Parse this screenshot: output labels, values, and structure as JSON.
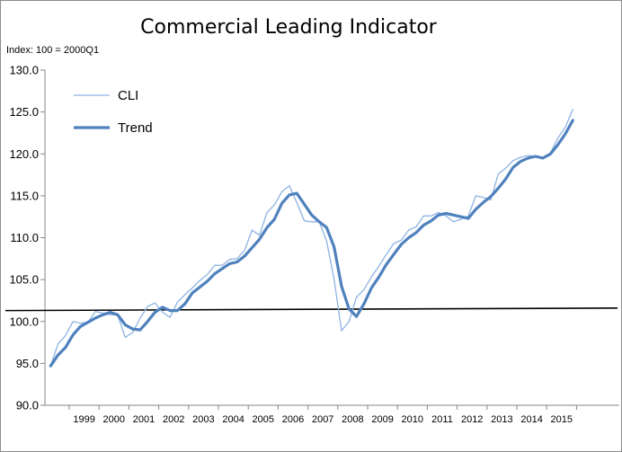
{
  "chart_data": {
    "type": "line",
    "title": "Commercial Leading Indicator",
    "subtitle": "Index: 100 = 2000Q1",
    "xlabel": "",
    "ylabel": "",
    "ylim": [
      90,
      130
    ],
    "yticks": [
      "90.0",
      "95.0",
      "100.0",
      "105.0",
      "110.0",
      "115.0",
      "120.0",
      "125.0",
      "130.0"
    ],
    "xticks": [
      "1999",
      "2000",
      "2001",
      "2002",
      "2003",
      "2004",
      "2005",
      "2006",
      "2007",
      "2008",
      "2009",
      "2010",
      "2011",
      "2012",
      "2013",
      "2014",
      "2015"
    ],
    "grid": false,
    "legend": "top-left",
    "x_start": "1998Q2",
    "frequency": "quarterly",
    "series": [
      {
        "name": "CLI",
        "color": "#8db3e2",
        "values": [
          94.7,
          97.3,
          98.3,
          100.0,
          99.8,
          99.9,
          101.2,
          101.0,
          100.8,
          100.8,
          98.1,
          98.7,
          100.4,
          101.8,
          102.2,
          101.1,
          100.5,
          102.3,
          103.2,
          104.0,
          104.9,
          105.6,
          106.7,
          106.7,
          107.4,
          107.5,
          108.5,
          110.9,
          110.3,
          113.0,
          113.9,
          115.5,
          116.2,
          114.2,
          112.0,
          111.9,
          111.9,
          109.6,
          105.0,
          98.9,
          100.0,
          102.9,
          103.8,
          105.3,
          106.6,
          108.0,
          109.3,
          109.7,
          110.9,
          111.3,
          112.6,
          112.6,
          113.0,
          112.6,
          111.9,
          112.2,
          112.6,
          115.0,
          114.8,
          114.5,
          117.6,
          118.3,
          119.2,
          119.6,
          119.8,
          119.7,
          119.5,
          120.1,
          121.9,
          123.2,
          125.3
        ]
      },
      {
        "name": "Trend",
        "color": "#4f81bd",
        "values": [
          94.7,
          96.0,
          96.9,
          98.4,
          99.4,
          99.9,
          100.4,
          100.8,
          101.1,
          100.8,
          99.6,
          99.1,
          99.0,
          100.0,
          101.1,
          101.7,
          101.3,
          101.3,
          102.1,
          103.4,
          104.1,
          104.8,
          105.7,
          106.3,
          106.9,
          107.1,
          107.8,
          108.8,
          109.8,
          111.2,
          112.2,
          114.1,
          115.1,
          115.3,
          114.0,
          112.7,
          111.9,
          111.2,
          108.9,
          104.2,
          101.5,
          100.6,
          102.1,
          104.0,
          105.3,
          106.8,
          108.0,
          109.2,
          110.0,
          110.6,
          111.5,
          112.0,
          112.7,
          112.9,
          112.7,
          112.5,
          112.3,
          113.4,
          114.2,
          114.9,
          115.9,
          117.0,
          118.4,
          119.1,
          119.5,
          119.7,
          119.5,
          120.0,
          121.1,
          122.4,
          124.0
        ]
      }
    ],
    "reference_line": {
      "color": "#000000",
      "y_start": 101.3,
      "y_end": 101.6
    }
  }
}
